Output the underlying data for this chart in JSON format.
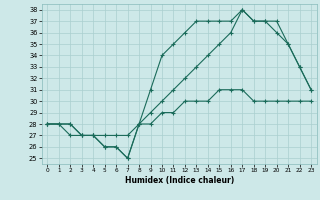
{
  "xlabel": "Humidex (Indice chaleur)",
  "bg_color": "#cde8e8",
  "grid_color": "#aacfcf",
  "line_color": "#1a6b5a",
  "xlim": [
    -0.5,
    23.5
  ],
  "ylim": [
    24.5,
    38.5
  ],
  "xticks": [
    0,
    1,
    2,
    3,
    4,
    5,
    6,
    7,
    8,
    9,
    10,
    11,
    12,
    13,
    14,
    15,
    16,
    17,
    18,
    19,
    20,
    21,
    22,
    23
  ],
  "yticks": [
    25,
    26,
    27,
    28,
    29,
    30,
    31,
    32,
    33,
    34,
    35,
    36,
    37,
    38
  ],
  "line1_x": [
    0,
    1,
    2,
    3,
    4,
    5,
    6,
    7,
    8,
    9,
    10,
    11,
    12,
    13,
    14,
    15,
    16,
    17,
    18,
    19,
    20,
    21,
    22,
    23
  ],
  "line1_y": [
    28,
    28,
    27,
    27,
    27,
    26,
    26,
    25,
    28,
    31,
    34,
    35,
    36,
    37,
    37,
    37,
    37,
    38,
    37,
    37,
    36,
    35,
    33,
    31
  ],
  "line2_x": [
    0,
    2,
    3,
    4,
    5,
    6,
    7,
    8,
    9,
    10,
    11,
    12,
    13,
    14,
    15,
    16,
    17,
    18,
    19,
    20,
    21,
    22,
    23
  ],
  "line2_y": [
    28,
    28,
    27,
    27,
    26,
    26,
    25,
    28,
    29,
    30,
    31,
    32,
    33,
    34,
    35,
    36,
    38,
    37,
    37,
    37,
    35,
    33,
    31
  ],
  "line3_x": [
    0,
    1,
    2,
    3,
    4,
    5,
    6,
    7,
    8,
    9,
    10,
    11,
    12,
    13,
    14,
    15,
    16,
    17,
    18,
    19,
    20,
    21,
    22,
    23
  ],
  "line3_y": [
    28,
    28,
    28,
    27,
    27,
    27,
    27,
    27,
    28,
    28,
    29,
    29,
    30,
    30,
    30,
    31,
    31,
    31,
    30,
    30,
    30,
    30,
    30,
    30
  ]
}
